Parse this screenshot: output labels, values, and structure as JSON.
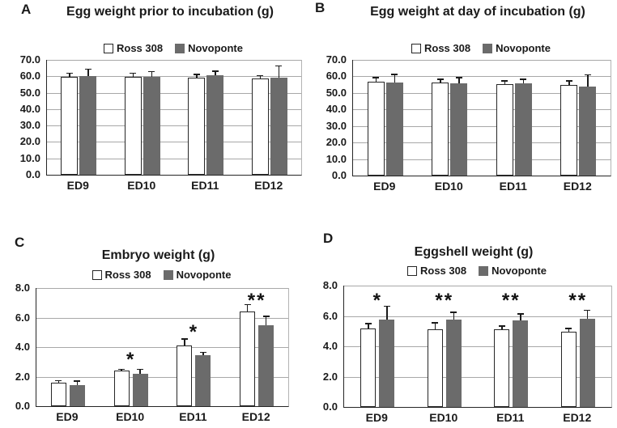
{
  "colors": {
    "ross_fill": "#ffffff",
    "novoponte_fill": "#6b6b6b",
    "gridline": "#a8a8a8",
    "axis": "#262626",
    "text": "#1a1a1a"
  },
  "chart_data": [
    {
      "panel": "A",
      "type": "bar",
      "title": "Egg weight prior to incubation (g)",
      "categories": [
        "ED9",
        "ED10",
        "ED11",
        "ED12"
      ],
      "series": [
        {
          "name": "Ross 308",
          "fill": "#ffffff",
          "values": [
            59.8,
            59.6,
            59.3,
            58.9
          ],
          "errors_up": [
            2.2,
            2.3,
            2.0,
            1.7
          ]
        },
        {
          "name": "Novoponte",
          "fill": "#6b6b6b",
          "values": [
            60.0,
            59.5,
            60.4,
            59.3
          ],
          "errors_up": [
            4.5,
            3.4,
            2.9,
            7.2
          ]
        }
      ],
      "xlabel": "",
      "ylabel": "",
      "ylim": [
        0,
        70
      ],
      "ytick_step": 10,
      "ytick_labels": [
        "0.0",
        "10.0",
        "20.0",
        "30.0",
        "40.0",
        "50.0",
        "60.0",
        "70.0"
      ],
      "grid": true,
      "legend_position": "top",
      "annotations": []
    },
    {
      "panel": "B",
      "type": "bar",
      "title": "Egg weight at day of incubation (g)",
      "categories": [
        "ED9",
        "ED10",
        "ED11",
        "ED12"
      ],
      "series": [
        {
          "name": "Ross 308",
          "fill": "#ffffff",
          "values": [
            56.6,
            56.3,
            55.4,
            55.0
          ],
          "errors_up": [
            2.8,
            2.2,
            1.9,
            2.4
          ]
        },
        {
          "name": "Novoponte",
          "fill": "#6b6b6b",
          "values": [
            56.5,
            55.6,
            55.6,
            53.8
          ],
          "errors_up": [
            4.8,
            3.7,
            2.8,
            7.3
          ]
        }
      ],
      "xlabel": "",
      "ylabel": "",
      "ylim": [
        0,
        70
      ],
      "ytick_step": 10,
      "ytick_labels": [
        "0.0",
        "10.0",
        "20.0",
        "30.0",
        "40.0",
        "50.0",
        "60.0",
        "70.0"
      ],
      "grid": true,
      "legend_position": "top",
      "annotations": []
    },
    {
      "panel": "C",
      "type": "bar",
      "title": "Embryo weight (g)",
      "categories": [
        "ED9",
        "ED10",
        "ED11",
        "ED12"
      ],
      "series": [
        {
          "name": "Ross 308",
          "fill": "#ffffff",
          "values": [
            1.6,
            2.4,
            4.1,
            6.4
          ],
          "errors_up": [
            0.15,
            0.1,
            0.45,
            0.5
          ]
        },
        {
          "name": "Novoponte",
          "fill": "#6b6b6b",
          "values": [
            1.45,
            2.2,
            3.45,
            5.5
          ],
          "errors_up": [
            0.25,
            0.3,
            0.2,
            0.6
          ]
        }
      ],
      "xlabel": "",
      "ylabel": "",
      "ylim": [
        0,
        8
      ],
      "ytick_step": 2,
      "ytick_labels": [
        "0.0",
        "2.0",
        "4.0",
        "6.0",
        "8.0"
      ],
      "grid": true,
      "legend_position": "top",
      "annotations": [
        {
          "category": "ED10",
          "text": "*",
          "y": 3.0
        },
        {
          "category": "ED11",
          "text": "*",
          "y": 4.9
        },
        {
          "category": "ED12",
          "text": "**",
          "y": 7.0
        }
      ]
    },
    {
      "panel": "D",
      "type": "bar",
      "title": "Eggshell weight (g)",
      "categories": [
        "ED9",
        "ED10",
        "ED11",
        "ED12"
      ],
      "series": [
        {
          "name": "Ross 308",
          "fill": "#ffffff",
          "values": [
            5.2,
            5.1,
            5.1,
            4.95
          ],
          "errors_up": [
            0.3,
            0.45,
            0.25,
            0.25
          ]
        },
        {
          "name": "Novoponte",
          "fill": "#6b6b6b",
          "values": [
            5.75,
            5.75,
            5.7,
            5.8
          ],
          "errors_up": [
            0.9,
            0.5,
            0.45,
            0.6
          ]
        }
      ],
      "xlabel": "",
      "ylabel": "",
      "ylim": [
        0,
        8
      ],
      "ytick_step": 2,
      "ytick_labels": [
        "0.0",
        "2.0",
        "4.0",
        "6.0",
        "8.0"
      ],
      "grid": true,
      "legend_position": "top",
      "annotations": [
        {
          "category": "ED9",
          "text": "*",
          "y": 6.9
        },
        {
          "category": "ED10",
          "text": "**",
          "y": 6.9
        },
        {
          "category": "ED11",
          "text": "**",
          "y": 6.9
        },
        {
          "category": "ED12",
          "text": "**",
          "y": 6.9
        }
      ]
    }
  ]
}
